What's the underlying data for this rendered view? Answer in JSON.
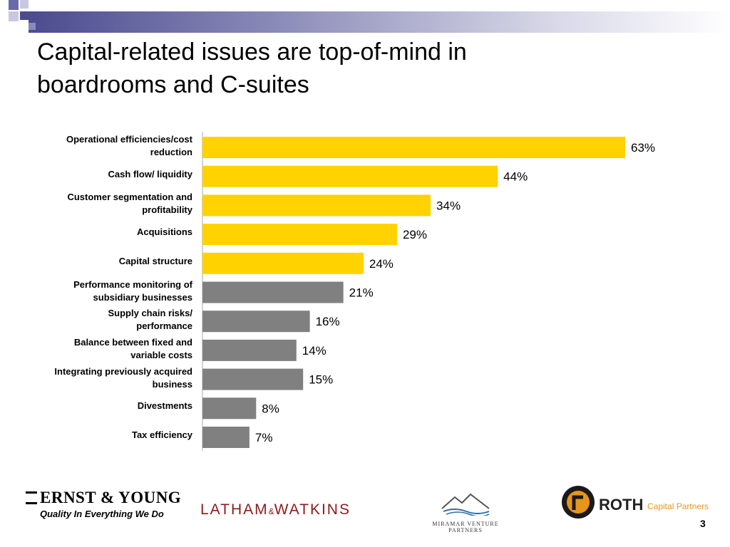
{
  "title_lines": [
    "Capital-related issues are top-of-mind in",
    "boardrooms and C-suites"
  ],
  "chart_data": {
    "type": "bar",
    "orientation": "horizontal",
    "title": "",
    "xlabel": "",
    "ylabel": "",
    "grid": false,
    "categories": [
      "Operational efficiencies/cost reduction",
      "Cash flow/ liquidity",
      "Customer segmentation and profitability",
      "Acquisitions",
      "Capital structure",
      "Performance monitoring of subsidiary businesses",
      "Supply chain risks/ performance",
      "Balance between fixed and variable costs",
      "Integrating previously acquired business",
      "Divestments",
      "Tax efficiency"
    ],
    "label_lines": [
      [
        "Operational efficiencies/cost",
        "reduction"
      ],
      [
        "Cash flow/ liquidity"
      ],
      [
        "Customer segmentation and",
        "profitability"
      ],
      [
        "Acquisitions"
      ],
      [
        "Capital structure"
      ],
      [
        "Performance monitoring of",
        "subsidiary businesses"
      ],
      [
        "Supply chain risks/",
        "performance"
      ],
      [
        "Balance between fixed and",
        "variable costs"
      ],
      [
        "Integrating previously acquired",
        "business"
      ],
      [
        "Divestments"
      ],
      [
        "Tax efficiency"
      ]
    ],
    "values": [
      63,
      44,
      34,
      29,
      24,
      21,
      16,
      14,
      15,
      8,
      7
    ],
    "value_labels": [
      "63%",
      "44%",
      "34%",
      "29%",
      "24%",
      "21%",
      "16%",
      "14%",
      "15%",
      "8%",
      "7%"
    ],
    "bar_colors": [
      "#FFD200",
      "#FFD200",
      "#FFD200",
      "#FFD200",
      "#FFD200",
      "#808080",
      "#808080",
      "#808080",
      "#808080",
      "#808080",
      "#808080"
    ],
    "xlim": [
      0,
      63
    ]
  },
  "logos": {
    "ey_name": "ERNST & YOUNG",
    "ey_tagline": "Quality In Everything We Do",
    "latham_left": "LATHAM",
    "latham_amp": "&",
    "latham_right": "WATKINS",
    "miramar": "MIRAMAR VENTURE PARTNERS",
    "roth_name": "ROTH",
    "roth_sub": "Capital Partners"
  },
  "page_number": "3",
  "colors": {
    "highlight": "#FFD200",
    "neutral": "#808080",
    "deco": "#4b4b8f",
    "roth_orange": "#e8961a",
    "latham_red": "#8b1c1c"
  }
}
